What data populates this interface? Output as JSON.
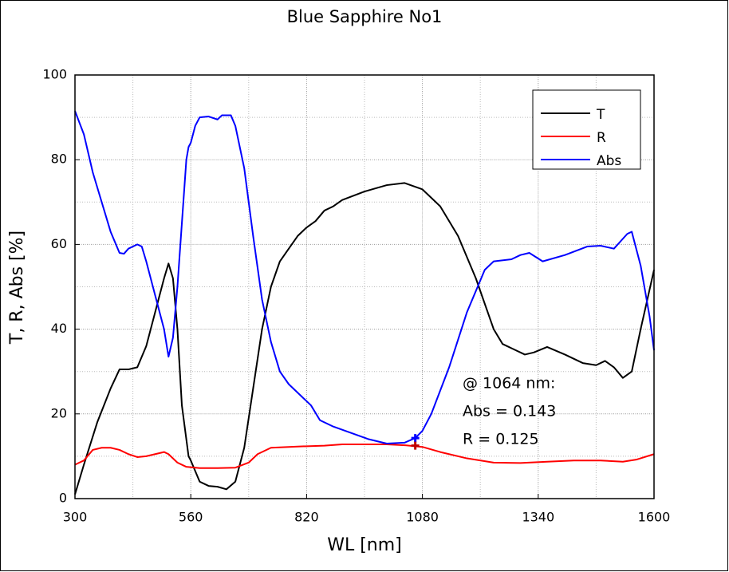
{
  "chart_data": {
    "type": "line",
    "title": "Blue Sapphire No1",
    "x_label": "WL [nm]",
    "y_label": "T, R, Abs [%]",
    "xlim": [
      300,
      1600
    ],
    "ylim": [
      0,
      100
    ],
    "xticks": [
      300,
      560,
      820,
      1080,
      1340,
      1600
    ],
    "yticks": [
      0,
      20,
      40,
      60,
      80,
      100
    ],
    "grid": true,
    "legend": "upper right",
    "series": [
      {
        "name": "T",
        "color": "#000000",
        "x": [
          300,
          320,
          350,
          380,
          400,
          420,
          440,
          460,
          480,
          500,
          510,
          520,
          530,
          540,
          555,
          560,
          580,
          600,
          620,
          640,
          660,
          680,
          700,
          720,
          740,
          760,
          780,
          800,
          820,
          840,
          860,
          880,
          900,
          950,
          1000,
          1040,
          1080,
          1120,
          1160,
          1200,
          1220,
          1240,
          1260,
          1280,
          1310,
          1330,
          1360,
          1400,
          1440,
          1470,
          1490,
          1510,
          1530,
          1550,
          1570,
          1600
        ],
        "values": [
          1,
          8,
          18,
          26,
          30.5,
          30.5,
          31,
          36,
          44,
          52,
          55.5,
          52,
          40,
          22,
          10,
          9,
          4,
          3,
          2.8,
          2.2,
          4,
          12,
          26,
          40,
          50,
          56,
          59,
          62,
          64,
          65.5,
          68,
          69,
          70.5,
          72.5,
          74,
          74.5,
          73,
          69,
          62,
          52,
          46,
          40,
          36.5,
          35.5,
          34,
          34.5,
          35.8,
          34,
          32,
          31.5,
          32.5,
          31,
          28.5,
          30,
          40,
          54
        ]
      },
      {
        "name": "R",
        "color": "#ff0000",
        "x": [
          300,
          320,
          340,
          360,
          380,
          400,
          420,
          440,
          460,
          480,
          500,
          510,
          530,
          550,
          580,
          620,
          660,
          690,
          710,
          740,
          800,
          860,
          900,
          1000,
          1040,
          1080,
          1120,
          1180,
          1240,
          1300,
          1360,
          1420,
          1480,
          1530,
          1560,
          1600
        ],
        "values": [
          8,
          9,
          11.5,
          12,
          12,
          11.5,
          10.5,
          9.8,
          10,
          10.5,
          11,
          10.5,
          8.5,
          7.5,
          7.2,
          7.2,
          7.3,
          8.5,
          10.5,
          12,
          12.3,
          12.5,
          12.8,
          12.8,
          12.6,
          12.2,
          11,
          9.5,
          8.5,
          8.4,
          8.7,
          9,
          9,
          8.7,
          9.2,
          10.5
        ]
      },
      {
        "name": "Abs",
        "color": "#0000ff",
        "x": [
          300,
          320,
          340,
          360,
          380,
          400,
          410,
          420,
          440,
          450,
          460,
          480,
          500,
          510,
          520,
          530,
          540,
          550,
          555,
          560,
          570,
          580,
          600,
          620,
          630,
          650,
          660,
          680,
          700,
          720,
          740,
          760,
          780,
          800,
          830,
          850,
          880,
          920,
          960,
          1000,
          1040,
          1064,
          1080,
          1100,
          1140,
          1180,
          1220,
          1240,
          1280,
          1300,
          1320,
          1350,
          1400,
          1450,
          1480,
          1510,
          1540,
          1550,
          1570,
          1590,
          1600
        ],
        "values": [
          91.5,
          86,
          77,
          70,
          63,
          58,
          57.8,
          59,
          60,
          59.5,
          56,
          48,
          40,
          33.5,
          38,
          50,
          65,
          80,
          83,
          84,
          88,
          90,
          90.2,
          89.5,
          90.5,
          90.5,
          88,
          78,
          62,
          47,
          37,
          30,
          27,
          25,
          22,
          18.5,
          17,
          15.5,
          14,
          13,
          13.2,
          14.3,
          16,
          20,
          31,
          44,
          54,
          56,
          56.5,
          57.5,
          58,
          56,
          57.5,
          59.5,
          59.7,
          59,
          62.5,
          63,
          55,
          43,
          35
        ]
      }
    ],
    "markers": [
      {
        "x": 1064,
        "y": 14.3,
        "color": "#0000ff"
      },
      {
        "x": 1064,
        "y": 12.5,
        "color": "#c00000"
      }
    ],
    "annotations": [
      {
        "text": "@ 1064 nm:",
        "color": "#000000"
      },
      {
        "text": "Abs = 0.143",
        "color": "#0000ff"
      },
      {
        "text": "R = 0.125",
        "color": "#ff0000"
      }
    ]
  }
}
